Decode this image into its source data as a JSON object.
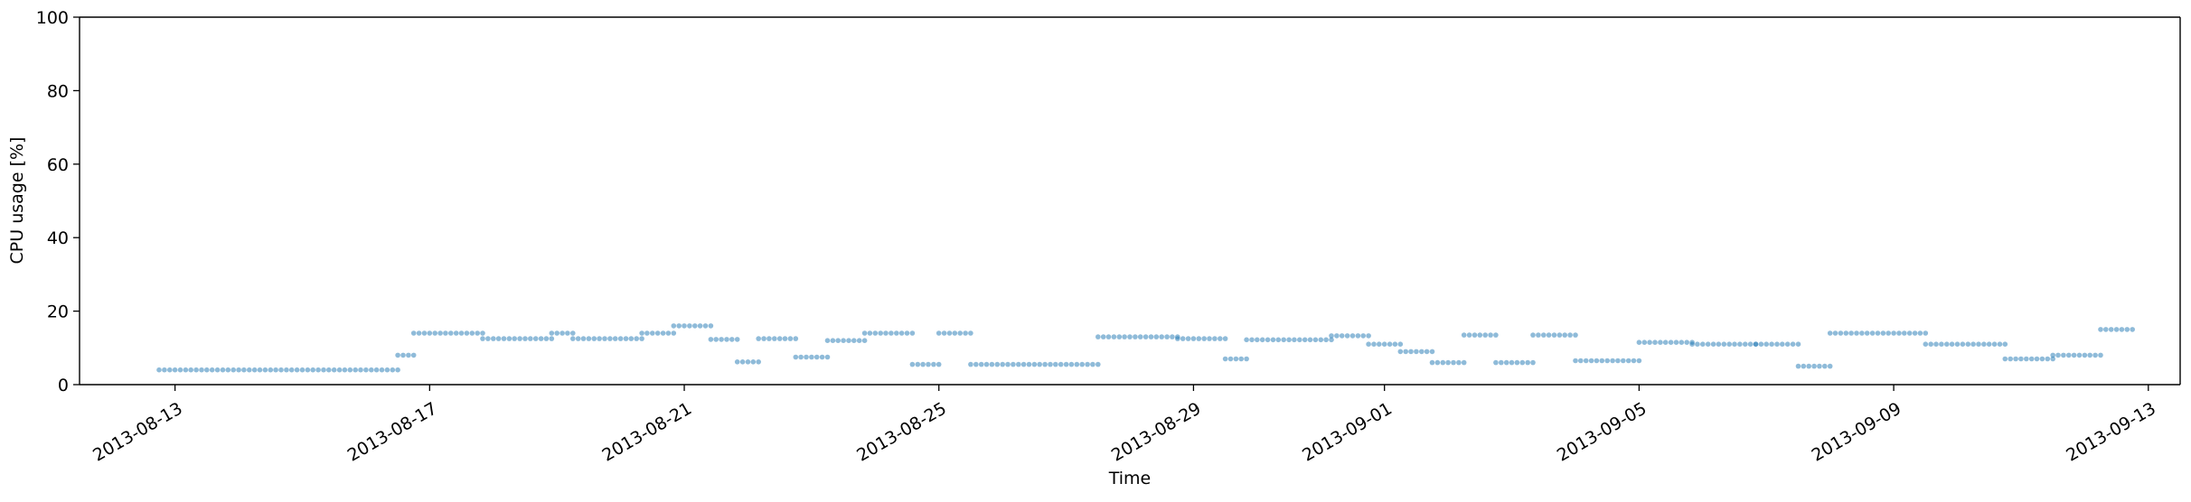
{
  "chart_data": {
    "type": "scatter",
    "title": "",
    "xlabel": "Time",
    "ylabel": "CPU usage [%]",
    "ylim": [
      0,
      100
    ],
    "xlim": [
      "2013-08-11T12:00",
      "2013-09-13T12:00"
    ],
    "y_ticks": [
      "0",
      "20",
      "40",
      "60",
      "80",
      "100"
    ],
    "x_ticks": [
      "2013-08-13",
      "2013-08-17",
      "2013-08-21",
      "2013-08-25",
      "2013-08-29",
      "2013-09-01",
      "2013-09-05",
      "2013-09-09",
      "2013-09-13"
    ],
    "grid": false,
    "legend": "none",
    "color": "#1f77b4",
    "marker_opacity": 0.5,
    "series": [
      {
        "segments": [
          {
            "start": "2013-08-12T18:00",
            "end": "2013-08-16T12:00",
            "y": 4.0
          },
          {
            "start": "2013-08-16T12:00",
            "end": "2013-08-16T18:00",
            "y": 8.0
          },
          {
            "start": "2013-08-16T18:00",
            "end": "2013-08-17T20:00",
            "y": 14.0
          },
          {
            "start": "2013-08-17T20:00",
            "end": "2013-08-18T22:00",
            "y": 12.5
          },
          {
            "start": "2013-08-18T22:00",
            "end": "2013-08-19T06:00",
            "y": 14.0
          },
          {
            "start": "2013-08-19T06:00",
            "end": "2013-08-20T08:00",
            "y": 12.5
          },
          {
            "start": "2013-08-20T08:00",
            "end": "2013-08-20T20:00",
            "y": 14.0
          },
          {
            "start": "2013-08-20T20:00",
            "end": "2013-08-21T10:00",
            "y": 16.0
          },
          {
            "start": "2013-08-21T10:00",
            "end": "2013-08-21T20:00",
            "y": 12.3
          },
          {
            "start": "2013-08-21T20:00",
            "end": "2013-08-22T04:00",
            "y": 6.2
          },
          {
            "start": "2013-08-22T04:00",
            "end": "2013-08-22T18:00",
            "y": 12.5
          },
          {
            "start": "2013-08-22T18:00",
            "end": "2013-08-23T06:00",
            "y": 7.5
          },
          {
            "start": "2013-08-23T06:00",
            "end": "2013-08-23T20:00",
            "y": 12.0
          },
          {
            "start": "2013-08-23T20:00",
            "end": "2013-08-24T14:00",
            "y": 14.0
          },
          {
            "start": "2013-08-24T14:00",
            "end": "2013-08-25T00:00",
            "y": 5.5
          },
          {
            "start": "2013-08-25T00:00",
            "end": "2013-08-25T12:00",
            "y": 14.0
          },
          {
            "start": "2013-08-25T12:00",
            "end": "2013-08-27T12:00",
            "y": 5.5
          },
          {
            "start": "2013-08-27T12:00",
            "end": "2013-08-28T18:00",
            "y": 13.0
          },
          {
            "start": "2013-08-28T18:00",
            "end": "2013-08-29T12:00",
            "y": 12.5
          },
          {
            "start": "2013-08-29T12:00",
            "end": "2013-08-29T20:00",
            "y": 7.0
          },
          {
            "start": "2013-08-29T20:00",
            "end": "2013-08-31T04:00",
            "y": 12.2
          },
          {
            "start": "2013-08-31T04:00",
            "end": "2013-08-31T18:00",
            "y": 13.3
          },
          {
            "start": "2013-08-31T18:00",
            "end": "2013-09-01T06:00",
            "y": 11.0
          },
          {
            "start": "2013-09-01T06:00",
            "end": "2013-09-01T18:00",
            "y": 9.0
          },
          {
            "start": "2013-09-01T18:00",
            "end": "2013-09-02T06:00",
            "y": 6.0
          },
          {
            "start": "2013-09-02T06:00",
            "end": "2013-09-02T18:00",
            "y": 13.5
          },
          {
            "start": "2013-09-02T18:00",
            "end": "2013-09-03T08:00",
            "y": 6.0
          },
          {
            "start": "2013-09-03T08:00",
            "end": "2013-09-04T00:00",
            "y": 13.5
          },
          {
            "start": "2013-09-04T00:00",
            "end": "2013-09-05T00:00",
            "y": 6.5
          },
          {
            "start": "2013-09-05T00:00",
            "end": "2013-09-05T20:00",
            "y": 11.5
          },
          {
            "start": "2013-09-05T20:00",
            "end": "2013-09-06T20:00",
            "y": 11.0
          },
          {
            "start": "2013-09-06T20:00",
            "end": "2013-09-07T12:00",
            "y": 11.0
          },
          {
            "start": "2013-09-07T12:00",
            "end": "2013-09-08T00:00",
            "y": 5.0
          },
          {
            "start": "2013-09-08T00:00",
            "end": "2013-09-09T12:00",
            "y": 14.0
          },
          {
            "start": "2013-09-09T12:00",
            "end": "2013-09-10T18:00",
            "y": 11.0
          },
          {
            "start": "2013-09-10T18:00",
            "end": "2013-09-11T12:00",
            "y": 7.0
          },
          {
            "start": "2013-09-11T12:00",
            "end": "2013-09-12T06:00",
            "y": 8.0
          },
          {
            "start": "2013-09-12T06:00",
            "end": "2013-09-12T18:00",
            "y": 15.0
          }
        ]
      }
    ]
  }
}
